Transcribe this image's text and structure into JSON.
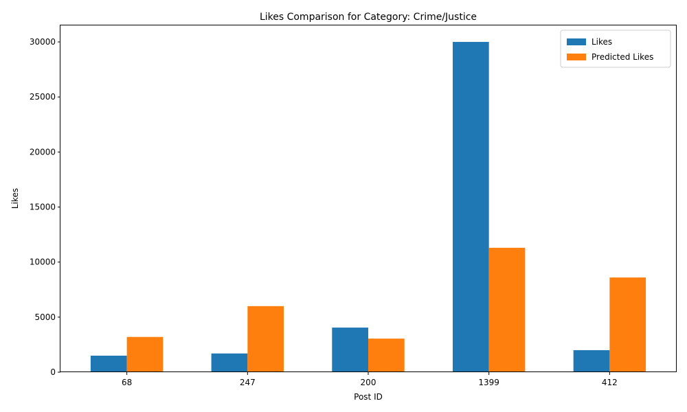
{
  "chart_data": {
    "type": "bar",
    "title": "Likes Comparison for Category: Crime/Justice",
    "xlabel": "Post ID",
    "ylabel": "Likes",
    "categories": [
      "68",
      "247",
      "200",
      "1399",
      "412"
    ],
    "series": [
      {
        "name": "Likes",
        "color": "#1f77b4",
        "values": [
          1500,
          1700,
          4050,
          30000,
          2000
        ]
      },
      {
        "name": "Predicted Likes",
        "color": "#ff7f0e",
        "values": [
          3200,
          6000,
          3050,
          11300,
          8600
        ]
      }
    ],
    "ylim": [
      0,
      31500
    ],
    "yticks": [
      0,
      5000,
      10000,
      15000,
      20000,
      25000,
      30000
    ],
    "grid": false,
    "legend_position": "top-right"
  }
}
